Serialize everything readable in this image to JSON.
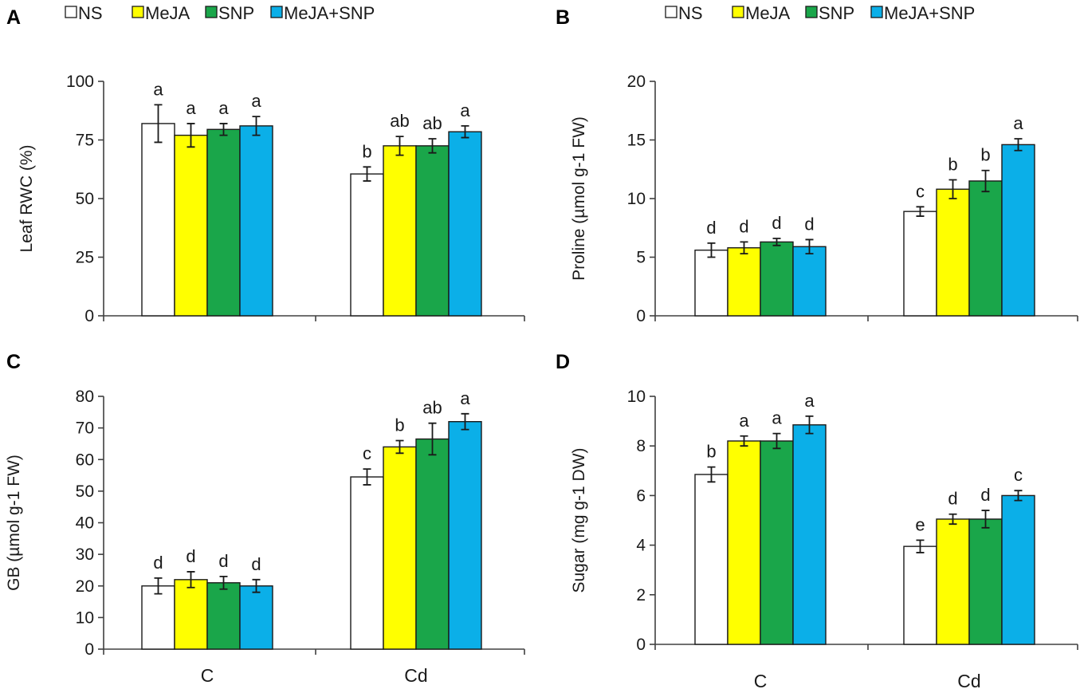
{
  "colors": {
    "NS": "#ffffff",
    "MeJA": "#ffff00",
    "SNP": "#1aa64a",
    "MeJA+SNP": "#0bafe8"
  },
  "legend": [
    "NS",
    "MeJA",
    "SNP",
    "MeJA+SNP"
  ],
  "chart_data": [
    {
      "panel": "A",
      "type": "bar",
      "ylabel": "Leaf RWC (%)",
      "ylim": [
        0,
        100
      ],
      "yticks": [
        "0",
        "25",
        "50",
        "75",
        "100"
      ],
      "categories": [
        "C",
        "Cd"
      ],
      "series": [
        {
          "name": "NS",
          "values": [
            82,
            60.5
          ],
          "errors": [
            8,
            3
          ],
          "letters": [
            "a",
            "b"
          ]
        },
        {
          "name": "MeJA",
          "values": [
            77,
            72.5
          ],
          "errors": [
            5,
            4
          ],
          "letters": [
            "a",
            "ab"
          ]
        },
        {
          "name": "SNP",
          "values": [
            79.5,
            72.5
          ],
          "errors": [
            2.5,
            3
          ],
          "letters": [
            "a",
            "ab"
          ]
        },
        {
          "name": "MeJA+SNP",
          "values": [
            81,
            78.5
          ],
          "errors": [
            4,
            2.5
          ],
          "letters": [
            "a",
            "a"
          ]
        }
      ]
    },
    {
      "panel": "B",
      "type": "bar",
      "ylabel": "Proline (µmol g-1 FW)",
      "ylim": [
        0,
        20
      ],
      "yticks": [
        "0",
        "5",
        "10",
        "15",
        "20"
      ],
      "categories": [
        "C",
        "Cd"
      ],
      "series": [
        {
          "name": "NS",
          "values": [
            5.6,
            8.9
          ],
          "errors": [
            0.6,
            0.4
          ],
          "letters": [
            "d",
            "c"
          ]
        },
        {
          "name": "MeJA",
          "values": [
            5.8,
            10.8
          ],
          "errors": [
            0.5,
            0.8
          ],
          "letters": [
            "d",
            "b"
          ]
        },
        {
          "name": "SNP",
          "values": [
            6.3,
            11.5
          ],
          "errors": [
            0.3,
            0.9
          ],
          "letters": [
            "d",
            "b"
          ]
        },
        {
          "name": "MeJA+SNP",
          "values": [
            5.9,
            14.6
          ],
          "errors": [
            0.6,
            0.5
          ],
          "letters": [
            "d",
            "a"
          ]
        }
      ]
    },
    {
      "panel": "C",
      "type": "bar",
      "ylabel": "GB (µmol g-1 FW)",
      "ylim": [
        0,
        80
      ],
      "yticks": [
        "0",
        "10",
        "20",
        "30",
        "40",
        "50",
        "60",
        "70",
        "80"
      ],
      "categories": [
        "C",
        "Cd"
      ],
      "series": [
        {
          "name": "NS",
          "values": [
            20,
            54.5
          ],
          "errors": [
            2.5,
            2.5
          ],
          "letters": [
            "d",
            "c"
          ]
        },
        {
          "name": "MeJA",
          "values": [
            22,
            64
          ],
          "errors": [
            2.5,
            2
          ],
          "letters": [
            "d",
            "b"
          ]
        },
        {
          "name": "SNP",
          "values": [
            21,
            66.5
          ],
          "errors": [
            2,
            5
          ],
          "letters": [
            "d",
            "ab"
          ]
        },
        {
          "name": "MeJA+SNP",
          "values": [
            20,
            72
          ],
          "errors": [
            2,
            2.5
          ],
          "letters": [
            "d",
            "a"
          ]
        }
      ]
    },
    {
      "panel": "D",
      "type": "bar",
      "ylabel": "Sugar (mg g-1 DW)",
      "ylim": [
        0,
        10
      ],
      "yticks": [
        "0",
        "2",
        "4",
        "6",
        "8",
        "10"
      ],
      "categories": [
        "C",
        "Cd"
      ],
      "series": [
        {
          "name": "NS",
          "values": [
            6.85,
            3.95
          ],
          "errors": [
            0.3,
            0.25
          ],
          "letters": [
            "b",
            "e"
          ]
        },
        {
          "name": "MeJA",
          "values": [
            8.2,
            5.05
          ],
          "errors": [
            0.2,
            0.2
          ],
          "letters": [
            "a",
            "d"
          ]
        },
        {
          "name": "SNP",
          "values": [
            8.2,
            5.05
          ],
          "errors": [
            0.3,
            0.35
          ],
          "letters": [
            "a",
            "d"
          ]
        },
        {
          "name": "MeJA+SNP",
          "values": [
            8.85,
            6
          ],
          "errors": [
            0.35,
            0.2
          ],
          "letters": [
            "a",
            "c"
          ]
        }
      ]
    }
  ]
}
